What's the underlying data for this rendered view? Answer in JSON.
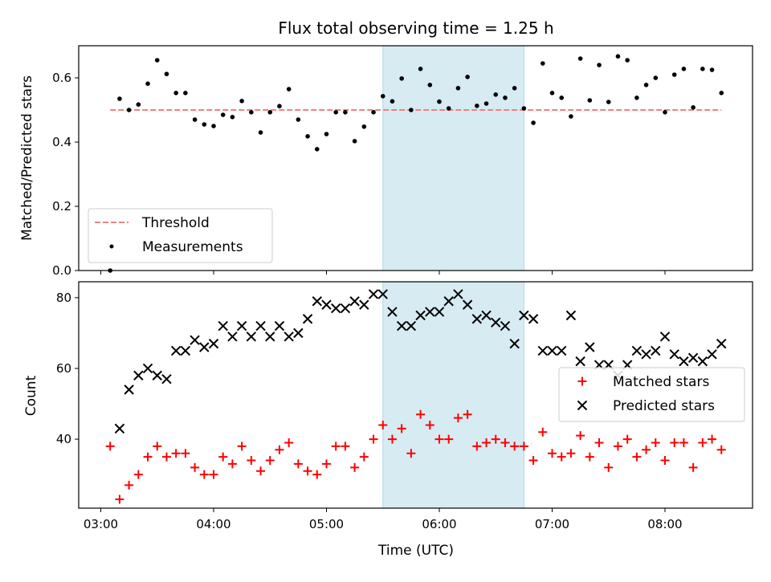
{
  "chart_data": {
    "type": "scatter",
    "title": "Flux total observing time = 1.25 h",
    "xlabel": "Time (UTC)",
    "x_tick_labels": [
      "03:00",
      "04:00",
      "05:00",
      "06:00",
      "07:00",
      "08:00"
    ],
    "shaded_interval": {
      "start": "05:30",
      "end": "06:45",
      "color": "#add8e6"
    },
    "colors": {
      "threshold": "#f08080",
      "measurements": "#000000",
      "matched": "#ff0000",
      "predicted": "#000000"
    },
    "top": {
      "ylabel": "Matched/Predicted stars",
      "ylim": [
        0,
        0.7
      ],
      "y_ticks": [
        0.0,
        0.2,
        0.4,
        0.6
      ],
      "y_tick_labels": [
        "0.0",
        "0.2",
        "0.4",
        "0.6"
      ],
      "legend_location": "lower-left",
      "threshold": {
        "name": "Threshold",
        "value": 0.5,
        "x_range": [
          "03:05",
          "08:30"
        ],
        "style": "dashed"
      },
      "measurements": {
        "name": "Measurements",
        "points": [
          [
            "03:05",
            0.0
          ],
          [
            "03:10",
            0.535
          ],
          [
            "03:15",
            0.5
          ],
          [
            "03:20",
            0.517
          ],
          [
            "03:25",
            0.582
          ],
          [
            "03:30",
            0.655
          ],
          [
            "03:35",
            0.612
          ],
          [
            "03:40",
            0.553
          ],
          [
            "03:45",
            0.553
          ],
          [
            "03:50",
            0.47
          ],
          [
            "03:55",
            0.455
          ],
          [
            "04:00",
            0.45
          ],
          [
            "04:05",
            0.485
          ],
          [
            "04:10",
            0.478
          ],
          [
            "04:15",
            0.528
          ],
          [
            "04:20",
            0.493
          ],
          [
            "04:25",
            0.43
          ],
          [
            "04:30",
            0.493
          ],
          [
            "04:35",
            0.512
          ],
          [
            "04:40",
            0.565
          ],
          [
            "04:45",
            0.47
          ],
          [
            "04:50",
            0.418
          ],
          [
            "04:55",
            0.378
          ],
          [
            "05:00",
            0.425
          ],
          [
            "05:05",
            0.493
          ],
          [
            "05:10",
            0.493
          ],
          [
            "05:15",
            0.403
          ],
          [
            "05:20",
            0.448
          ],
          [
            "05:25",
            0.493
          ],
          [
            "05:30",
            0.543
          ],
          [
            "05:35",
            0.527
          ],
          [
            "05:40",
            0.598
          ],
          [
            "05:45",
            0.5
          ],
          [
            "05:50",
            0.628
          ],
          [
            "05:55",
            0.578
          ],
          [
            "06:00",
            0.526
          ],
          [
            "06:05",
            0.505
          ],
          [
            "06:10",
            0.568
          ],
          [
            "06:15",
            0.603
          ],
          [
            "06:20",
            0.513
          ],
          [
            "06:25",
            0.52
          ],
          [
            "06:30",
            0.548
          ],
          [
            "06:35",
            0.538
          ],
          [
            "06:40",
            0.568
          ],
          [
            "06:45",
            0.505
          ],
          [
            "06:50",
            0.46
          ],
          [
            "06:55",
            0.645
          ],
          [
            "07:00",
            0.553
          ],
          [
            "07:05",
            0.538
          ],
          [
            "07:10",
            0.48
          ],
          [
            "07:15",
            0.66
          ],
          [
            "07:20",
            0.53
          ],
          [
            "07:25",
            0.64
          ],
          [
            "07:30",
            0.525
          ],
          [
            "07:35",
            0.667
          ],
          [
            "07:40",
            0.655
          ],
          [
            "07:45",
            0.538
          ],
          [
            "07:50",
            0.578
          ],
          [
            "07:55",
            0.6
          ],
          [
            "08:00",
            0.493
          ],
          [
            "08:05",
            0.61
          ],
          [
            "08:10",
            0.628
          ],
          [
            "08:15",
            0.508
          ],
          [
            "08:20",
            0.628
          ],
          [
            "08:25",
            0.625
          ],
          [
            "08:30",
            0.553
          ]
        ]
      }
    },
    "bottom": {
      "ylabel": "Count",
      "ylim": [
        20.5,
        84.5
      ],
      "y_ticks": [
        40,
        60,
        80
      ],
      "y_tick_labels": [
        "40",
        "60",
        "80"
      ],
      "legend_location": "center-right",
      "series": [
        {
          "name": "Matched stars",
          "marker": "plus",
          "points": [
            [
              "03:05",
              38
            ],
            [
              "03:10",
              23
            ],
            [
              "03:15",
              27
            ],
            [
              "03:20",
              30
            ],
            [
              "03:25",
              35
            ],
            [
              "03:30",
              38
            ],
            [
              "03:35",
              35
            ],
            [
              "03:40",
              36
            ],
            [
              "03:45",
              36
            ],
            [
              "03:50",
              32
            ],
            [
              "03:55",
              30
            ],
            [
              "04:00",
              30
            ],
            [
              "04:05",
              35
            ],
            [
              "04:10",
              33
            ],
            [
              "04:15",
              38
            ],
            [
              "04:20",
              34
            ],
            [
              "04:25",
              31
            ],
            [
              "04:30",
              34
            ],
            [
              "04:35",
              37
            ],
            [
              "04:40",
              39
            ],
            [
              "04:45",
              33
            ],
            [
              "04:50",
              31
            ],
            [
              "04:55",
              30
            ],
            [
              "05:00",
              33
            ],
            [
              "05:05",
              38
            ],
            [
              "05:10",
              38
            ],
            [
              "05:15",
              32
            ],
            [
              "05:20",
              35
            ],
            [
              "05:25",
              40
            ],
            [
              "05:30",
              44
            ],
            [
              "05:35",
              40
            ],
            [
              "05:40",
              43
            ],
            [
              "05:45",
              36
            ],
            [
              "05:50",
              47
            ],
            [
              "05:55",
              44
            ],
            [
              "06:00",
              40
            ],
            [
              "06:05",
              40
            ],
            [
              "06:10",
              46
            ],
            [
              "06:15",
              47
            ],
            [
              "06:20",
              38
            ],
            [
              "06:25",
              39
            ],
            [
              "06:30",
              40
            ],
            [
              "06:35",
              39
            ],
            [
              "06:40",
              38
            ],
            [
              "06:45",
              38
            ],
            [
              "06:50",
              34
            ],
            [
              "06:55",
              42
            ],
            [
              "07:00",
              36
            ],
            [
              "07:05",
              35
            ],
            [
              "07:10",
              36
            ],
            [
              "07:15",
              41
            ],
            [
              "07:20",
              35
            ],
            [
              "07:25",
              39
            ],
            [
              "07:30",
              32
            ],
            [
              "07:35",
              38
            ],
            [
              "07:40",
              40
            ],
            [
              "07:45",
              35
            ],
            [
              "07:50",
              37
            ],
            [
              "07:55",
              39
            ],
            [
              "08:00",
              34
            ],
            [
              "08:05",
              39
            ],
            [
              "08:10",
              39
            ],
            [
              "08:15",
              32
            ],
            [
              "08:20",
              39
            ],
            [
              "08:25",
              40
            ],
            [
              "08:30",
              37
            ]
          ]
        },
        {
          "name": "Predicted stars",
          "marker": "x",
          "points": [
            [
              "03:10",
              43
            ],
            [
              "03:15",
              54
            ],
            [
              "03:20",
              58
            ],
            [
              "03:25",
              60
            ],
            [
              "03:30",
              58
            ],
            [
              "03:35",
              57
            ],
            [
              "03:40",
              65
            ],
            [
              "03:45",
              65
            ],
            [
              "03:50",
              68
            ],
            [
              "03:55",
              66
            ],
            [
              "04:00",
              67
            ],
            [
              "04:05",
              72
            ],
            [
              "04:10",
              69
            ],
            [
              "04:15",
              72
            ],
            [
              "04:20",
              69
            ],
            [
              "04:25",
              72
            ],
            [
              "04:30",
              69
            ],
            [
              "04:35",
              72
            ],
            [
              "04:40",
              69
            ],
            [
              "04:45",
              70
            ],
            [
              "04:50",
              74
            ],
            [
              "04:55",
              79
            ],
            [
              "05:00",
              78
            ],
            [
              "05:05",
              77
            ],
            [
              "05:10",
              77
            ],
            [
              "05:15",
              79
            ],
            [
              "05:20",
              78
            ],
            [
              "05:25",
              81
            ],
            [
              "05:30",
              81
            ],
            [
              "05:35",
              76
            ],
            [
              "05:40",
              72
            ],
            [
              "05:45",
              72
            ],
            [
              "05:50",
              75
            ],
            [
              "05:55",
              76
            ],
            [
              "06:00",
              76
            ],
            [
              "06:05",
              79
            ],
            [
              "06:10",
              81
            ],
            [
              "06:15",
              78
            ],
            [
              "06:20",
              74
            ],
            [
              "06:25",
              75
            ],
            [
              "06:30",
              73
            ],
            [
              "06:35",
              72
            ],
            [
              "06:40",
              67
            ],
            [
              "06:45",
              75
            ],
            [
              "06:50",
              74
            ],
            [
              "06:55",
              65
            ],
            [
              "07:00",
              65
            ],
            [
              "07:05",
              65
            ],
            [
              "07:10",
              75
            ],
            [
              "07:15",
              62
            ],
            [
              "07:20",
              66
            ],
            [
              "07:25",
              61
            ],
            [
              "07:30",
              61
            ],
            [
              "07:35",
              58
            ],
            [
              "07:40",
              61
            ],
            [
              "07:45",
              65
            ],
            [
              "07:50",
              64
            ],
            [
              "07:55",
              65
            ],
            [
              "08:00",
              69
            ],
            [
              "08:05",
              64
            ],
            [
              "08:10",
              62
            ],
            [
              "08:15",
              63
            ],
            [
              "08:20",
              62
            ],
            [
              "08:25",
              64
            ],
            [
              "08:30",
              67
            ]
          ]
        }
      ]
    }
  }
}
